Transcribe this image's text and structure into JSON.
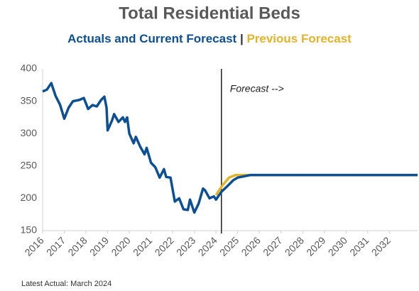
{
  "chart_data": {
    "type": "line",
    "title": "Total Residential Beds",
    "legend_separator": "|",
    "annotation": "Forecast -->",
    "annotation_x": 2024.25,
    "footnote": "Latest Actual: March 2024",
    "xlim": [
      2016,
      2033.3
    ],
    "xticks": [
      2016,
      2017,
      2018,
      2019,
      2020,
      2021,
      2022,
      2023,
      2024,
      2025,
      2026,
      2027,
      2028,
      2029,
      2030,
      2031,
      2032
    ],
    "ylim": [
      150,
      400
    ],
    "yticks": [
      150,
      200,
      250,
      300,
      350,
      400
    ],
    "grid": false,
    "series": [
      {
        "name": "Previous Forecast",
        "color": "#e3b32a",
        "x": [
          2024.0,
          2024.3,
          2024.6,
          2024.9,
          2025.5,
          2033.3
        ],
        "values": [
          205,
          220,
          232,
          236,
          236,
          236
        ]
      },
      {
        "name": "Actuals and Current Forecast",
        "color": "#0d4f94",
        "x": [
          2016.0,
          2016.2,
          2016.4,
          2016.6,
          2016.8,
          2017.0,
          2017.2,
          2017.4,
          2017.7,
          2017.9,
          2018.1,
          2018.3,
          2018.5,
          2018.7,
          2018.85,
          2018.95,
          2019.0,
          2019.2,
          2019.3,
          2019.5,
          2019.7,
          2019.8,
          2019.9,
          2020.0,
          2020.2,
          2020.3,
          2020.5,
          2020.7,
          2020.8,
          2021.0,
          2021.2,
          2021.4,
          2021.6,
          2021.7,
          2021.9,
          2022.1,
          2022.3,
          2022.5,
          2022.7,
          2022.8,
          2023.0,
          2023.2,
          2023.4,
          2023.5,
          2023.7,
          2023.9,
          2024.0,
          2024.25,
          2024.5,
          2024.8,
          2025.0,
          2025.3,
          2025.6,
          2026.0,
          2033.3
        ],
        "values": [
          365,
          368,
          378,
          358,
          345,
          323,
          340,
          350,
          352,
          355,
          338,
          344,
          342,
          352,
          357,
          340,
          305,
          320,
          330,
          318,
          325,
          318,
          325,
          300,
          285,
          295,
          280,
          268,
          278,
          255,
          248,
          232,
          245,
          233,
          232,
          195,
          200,
          183,
          182,
          198,
          178,
          192,
          215,
          212,
          200,
          203,
          198,
          210,
          218,
          228,
          232,
          234,
          236,
          236,
          236
        ]
      }
    ]
  }
}
